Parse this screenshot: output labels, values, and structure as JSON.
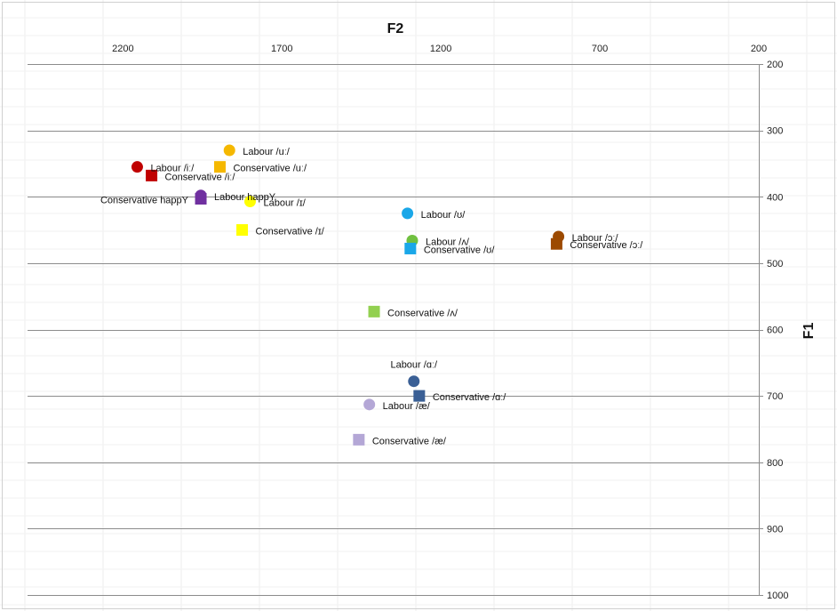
{
  "chart_data": {
    "type": "scatter",
    "title": "",
    "xlabel": "F2",
    "ylabel": "F1",
    "x_axis": {
      "reversed": true,
      "position": "top",
      "min": 200,
      "max": 2500,
      "ticks": [
        2200,
        1700,
        1200,
        700,
        200
      ]
    },
    "y_axis": {
      "reversed": true,
      "position": "right",
      "min": 200,
      "max": 1000,
      "ticks": [
        200,
        300,
        400,
        500,
        600,
        700,
        800,
        900,
        1000
      ]
    },
    "grid": "horizontal",
    "legend": "none",
    "series": [
      {
        "name": "Labour /uː/",
        "marker": "circle",
        "color": "#F5B800",
        "points": [
          {
            "x": 1865,
            "y": 330
          }
        ],
        "label_side": "right"
      },
      {
        "name": "Conservative /uː/",
        "marker": "square",
        "color": "#F5B800",
        "points": [
          {
            "x": 1895,
            "y": 355
          }
        ],
        "label_side": "right"
      },
      {
        "name": "Labour /iː/",
        "marker": "circle",
        "color": "#C00000",
        "points": [
          {
            "x": 2155,
            "y": 355
          }
        ],
        "label_side": "right"
      },
      {
        "name": "Conservative /iː/",
        "marker": "square",
        "color": "#C00000",
        "points": [
          {
            "x": 2110,
            "y": 368
          }
        ],
        "label_side": "right"
      },
      {
        "name": "Labour happY",
        "marker": "circle",
        "color": "#7030A0",
        "points": [
          {
            "x": 1955,
            "y": 398
          }
        ],
        "label_side": "right"
      },
      {
        "name": "Conservative happY",
        "marker": "square",
        "color": "#7030A0",
        "points": [
          {
            "x": 1955,
            "y": 403
          }
        ],
        "label_side": "left"
      },
      {
        "name": "Labour /ɪ/",
        "marker": "circle",
        "color": "#FFFF00",
        "points": [
          {
            "x": 1800,
            "y": 407
          }
        ],
        "label_side": "right"
      },
      {
        "name": "Conservative /ɪ/",
        "marker": "square",
        "color": "#FFFF00",
        "points": [
          {
            "x": 1825,
            "y": 450
          }
        ],
        "label_side": "right"
      },
      {
        "name": "Labour /ʊ/",
        "marker": "circle",
        "color": "#1AA7E8",
        "points": [
          {
            "x": 1305,
            "y": 425
          }
        ],
        "label_side": "right"
      },
      {
        "name": "Labour /ʌ/",
        "marker": "circle",
        "color": "#70C040",
        "points": [
          {
            "x": 1290,
            "y": 466
          }
        ],
        "label_side": "right"
      },
      {
        "name": "Conservative /ʊ/",
        "marker": "square",
        "color": "#1AA7E8",
        "points": [
          {
            "x": 1296,
            "y": 478
          }
        ],
        "label_side": "right"
      },
      {
        "name": "Labour /ɔː/",
        "marker": "circle",
        "color": "#9C4A00",
        "points": [
          {
            "x": 830,
            "y": 460
          }
        ],
        "label_side": "right"
      },
      {
        "name": "Conservative /ɔː/",
        "marker": "square",
        "color": "#9C4A00",
        "points": [
          {
            "x": 836,
            "y": 471
          }
        ],
        "label_side": "right"
      },
      {
        "name": "Conservative /ʌ/",
        "marker": "square",
        "color": "#92D050",
        "points": [
          {
            "x": 1410,
            "y": 573
          }
        ],
        "label_side": "right"
      },
      {
        "name": "Labour /ɑː/",
        "marker": "circle",
        "color": "#3A5F95",
        "points": [
          {
            "x": 1285,
            "y": 678
          }
        ],
        "label_side": "above"
      },
      {
        "name": "Conservative /ɑː/",
        "marker": "square",
        "color": "#3A5F95",
        "points": [
          {
            "x": 1268,
            "y": 700
          }
        ],
        "label_side": "right"
      },
      {
        "name": "Labour /æ/",
        "marker": "circle",
        "color": "#B4A7D6",
        "points": [
          {
            "x": 1425,
            "y": 713
          }
        ],
        "label_side": "right"
      },
      {
        "name": "Conservative /æ/",
        "marker": "square",
        "color": "#B4A7D6",
        "points": [
          {
            "x": 1458,
            "y": 766
          }
        ],
        "label_side": "right"
      }
    ]
  }
}
